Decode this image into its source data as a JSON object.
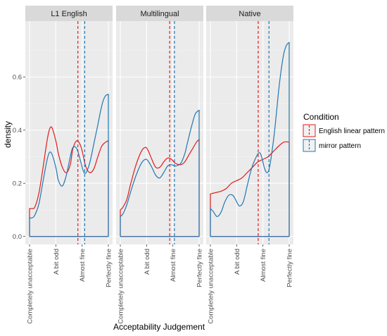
{
  "chart_data": {
    "type": "line",
    "xlabel": "Acceptability Judgement",
    "ylabel": "density",
    "categories": [
      "Completely unacceptable",
      "A bit odd",
      "Almost fine",
      "Perfectly fine"
    ],
    "x_range": [
      1,
      4
    ],
    "ylim": [
      -0.03,
      0.81
    ],
    "yticks": [
      0.0,
      0.2,
      0.4,
      0.6
    ],
    "ytick_labels": [
      "0.0",
      "0.2",
      "0.4",
      "0.6"
    ],
    "grid": true,
    "legend": {
      "title": "Condition",
      "position": "right",
      "entries": [
        "English linear pattern",
        "mirror pattern"
      ]
    },
    "colors": {
      "English linear pattern": "#e31a1c",
      "mirror pattern": "#1f78b4"
    },
    "panels": [
      {
        "title": "L1 English",
        "series": [
          {
            "name": "English linear pattern",
            "x": [
              1.0,
              1.1,
              1.2,
              1.35,
              1.5,
              1.65,
              1.75,
              1.85,
              2.0,
              2.1,
              2.25,
              2.4,
              2.55,
              2.65,
              2.8,
              2.95,
              3.05,
              3.15,
              3.3,
              3.45,
              3.6,
              3.75,
              3.9,
              4.0
            ],
            "y": [
              0.105,
              0.105,
              0.11,
              0.16,
              0.25,
              0.35,
              0.4,
              0.41,
              0.36,
              0.31,
              0.26,
              0.24,
              0.27,
              0.33,
              0.36,
              0.34,
              0.3,
              0.26,
              0.24,
              0.255,
              0.3,
              0.34,
              0.355,
              0.36
            ],
            "mean": 2.84
          },
          {
            "name": "mirror pattern",
            "x": [
              1.0,
              1.1,
              1.2,
              1.35,
              1.5,
              1.65,
              1.75,
              1.85,
              2.0,
              2.1,
              2.25,
              2.4,
              2.55,
              2.65,
              2.8,
              2.95,
              3.05,
              3.15,
              3.3,
              3.45,
              3.6,
              3.7,
              3.8,
              3.9,
              4.0
            ],
            "y": [
              0.07,
              0.07,
              0.08,
              0.12,
              0.2,
              0.28,
              0.315,
              0.31,
              0.26,
              0.21,
              0.19,
              0.23,
              0.3,
              0.335,
              0.33,
              0.28,
              0.245,
              0.24,
              0.28,
              0.35,
              0.42,
              0.47,
              0.51,
              0.53,
              0.535
            ],
            "mean": 3.1
          }
        ]
      },
      {
        "title": "Multilingual",
        "series": [
          {
            "name": "English linear pattern",
            "x": [
              1.0,
              1.1,
              1.25,
              1.4,
              1.6,
              1.8,
              1.95,
              2.05,
              2.2,
              2.35,
              2.5,
              2.65,
              2.8,
              2.95,
              3.1,
              3.3,
              3.45,
              3.6,
              3.75,
              3.9,
              4.0
            ],
            "y": [
              0.1,
              0.11,
              0.14,
              0.2,
              0.27,
              0.32,
              0.335,
              0.325,
              0.29,
              0.26,
              0.26,
              0.28,
              0.295,
              0.29,
              0.275,
              0.27,
              0.28,
              0.305,
              0.33,
              0.355,
              0.365
            ],
            "mean": 2.88
          },
          {
            "name": "mirror pattern",
            "x": [
              1.0,
              1.1,
              1.25,
              1.4,
              1.6,
              1.8,
              1.95,
              2.05,
              2.2,
              2.35,
              2.5,
              2.65,
              2.8,
              2.95,
              3.1,
              3.3,
              3.45,
              3.55,
              3.7,
              3.85,
              4.0
            ],
            "y": [
              0.075,
              0.085,
              0.12,
              0.17,
              0.23,
              0.275,
              0.29,
              0.285,
              0.26,
              0.23,
              0.22,
              0.24,
              0.265,
              0.27,
              0.265,
              0.275,
              0.31,
              0.35,
              0.41,
              0.46,
              0.475
            ],
            "mean": 3.06
          }
        ]
      },
      {
        "title": "Native",
        "series": [
          {
            "name": "English linear pattern",
            "x": [
              1.0,
              1.2,
              1.4,
              1.6,
              1.8,
              2.0,
              2.2,
              2.4,
              2.6,
              2.8,
              3.0,
              3.2,
              3.4,
              3.6,
              3.8,
              4.0
            ],
            "y": [
              0.16,
              0.165,
              0.17,
              0.18,
              0.2,
              0.21,
              0.22,
              0.24,
              0.26,
              0.28,
              0.29,
              0.3,
              0.32,
              0.34,
              0.355,
              0.355
            ],
            "mean": 2.82
          },
          {
            "name": "mirror pattern",
            "x": [
              1.0,
              1.1,
              1.25,
              1.4,
              1.55,
              1.7,
              1.85,
              1.95,
              2.1,
              2.25,
              2.4,
              2.55,
              2.7,
              2.85,
              2.95,
              3.05,
              3.15,
              3.25,
              3.4,
              3.5,
              3.6,
              3.7,
              3.8,
              3.9,
              4.0
            ],
            "y": [
              0.105,
              0.095,
              0.075,
              0.09,
              0.13,
              0.155,
              0.155,
              0.14,
              0.115,
              0.13,
              0.19,
              0.25,
              0.29,
              0.315,
              0.3,
              0.26,
              0.24,
              0.26,
              0.36,
              0.45,
              0.55,
              0.63,
              0.69,
              0.72,
              0.73
            ],
            "mean": 3.23
          }
        ]
      }
    ]
  }
}
